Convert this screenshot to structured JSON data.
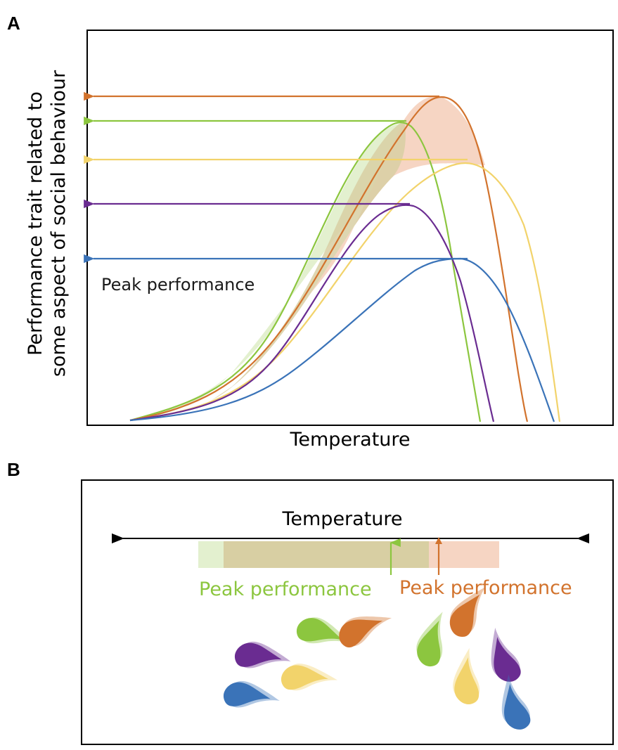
{
  "colors": {
    "green": "#8cc63f",
    "orange": "#d2732d",
    "yellow": "#f2d36b",
    "purple": "#6a2c91",
    "blue": "#3a73b8",
    "green_fill": "#e3f0cf",
    "orange_fill": "#f6d5c3",
    "overlap_fill": "#d6ceA0"
  },
  "panel_a": {
    "label": "A",
    "y_label_line1": "Performance trait related to",
    "y_label_line2": "some aspect of social behaviour",
    "x_label": "Temperature",
    "annotation": "Peak performance",
    "curves": [
      {
        "name": "orange",
        "color_key": "orange",
        "peak": 0.86
      },
      {
        "name": "green",
        "color_key": "green",
        "peak": 0.8
      },
      {
        "name": "yellow",
        "color_key": "yellow",
        "peak": 0.68
      },
      {
        "name": "purple",
        "color_key": "purple",
        "peak": 0.56
      },
      {
        "name": "blue",
        "color_key": "blue",
        "peak": 0.42
      }
    ]
  },
  "panel_b": {
    "label": "B",
    "axis_label": "Temperature",
    "peak_label_green": "Peak performance",
    "peak_label_orange": "Peak performance",
    "fish_left": [
      "purple",
      "blue",
      "green",
      "yellow",
      "orange"
    ],
    "fish_right": [
      "green",
      "orange",
      "yellow",
      "purple",
      "blue"
    ]
  }
}
